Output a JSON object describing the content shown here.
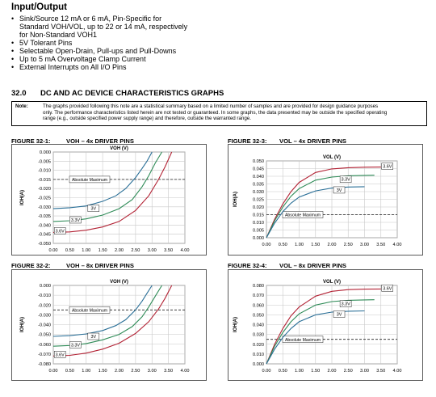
{
  "io_heading": "Input/Output",
  "bullets": [
    {
      "lines": [
        "Sink/Source 12 mA or 6 mA, Pin-Specific for",
        "Standard VOH/VOL, up to 22 or 14 mA, respectively",
        "for Non-Standard VOH1"
      ]
    },
    {
      "lines": [
        "5V Tolerant Pins"
      ]
    },
    {
      "lines": [
        "Selectable Open-Drain, Pull-ups and Pull-Downs"
      ]
    },
    {
      "lines": [
        "Up to 5 mA Overvoltage Clamp Current"
      ]
    },
    {
      "lines": [
        "External Interrupts on All I/O Pins"
      ]
    }
  ],
  "section": {
    "number": "32.0",
    "title": "DC AND AC DEVICE CHARACTERISTICS GRAPHS"
  },
  "note": {
    "label": "Note:",
    "lines": [
      "The graphs provided following this note are a statistical summary based on a limited number of samples and are provided for design guidance purposes",
      "only. The performance characteristics listed herein are not tested or guaranteed. In some graphs, the data presented may be outside the specified operating",
      "range (e.g., outside specified power supply range) and therefore, outside the warranted range."
    ]
  },
  "chart_data": [
    {
      "figure": "FIGURE 32-1:",
      "caption": "VOH – 4x DRIVER PINS",
      "type": "line",
      "title": "VOH (V)",
      "ylabel": "IOH(A)",
      "xlim": [
        0,
        4
      ],
      "ylim": [
        -0.05,
        0
      ],
      "x_ticks": [
        "0.00",
        "0.50",
        "1.00",
        "1.50",
        "2.00",
        "2.50",
        "3.00",
        "3.50",
        "4.00"
      ],
      "y_ticks": [
        "-0.050",
        "-0.045",
        "-0.040",
        "-0.035",
        "-0.030",
        "-0.025",
        "-0.020",
        "-0.015",
        "-0.010",
        "-0.005",
        "0.000"
      ],
      "reference": {
        "label": "Absolute Maximum",
        "y": -0.015
      },
      "series": [
        {
          "name": "3.6V",
          "color": "#b22234",
          "x": [
            0,
            0.5,
            1.0,
            1.5,
            2.0,
            2.5,
            2.9,
            3.2,
            3.4,
            3.6
          ],
          "y": [
            -0.044,
            -0.0437,
            -0.0428,
            -0.041,
            -0.038,
            -0.032,
            -0.024,
            -0.015,
            -0.008,
            0.0
          ]
        },
        {
          "name": "3.3V",
          "color": "#2e8b57",
          "x": [
            0,
            0.5,
            1.0,
            1.5,
            2.0,
            2.4,
            2.7,
            2.9,
            3.1,
            3.3
          ],
          "y": [
            -0.038,
            -0.0376,
            -0.0366,
            -0.0345,
            -0.031,
            -0.026,
            -0.019,
            -0.013,
            -0.006,
            0.0
          ]
        },
        {
          "name": "3V",
          "color": "#2a6f97",
          "x": [
            0,
            0.5,
            1.0,
            1.5,
            1.9,
            2.2,
            2.5,
            2.7,
            2.85,
            3.0
          ],
          "y": [
            -0.031,
            -0.0305,
            -0.0295,
            -0.027,
            -0.024,
            -0.02,
            -0.014,
            -0.009,
            -0.005,
            0.0
          ]
        }
      ]
    },
    {
      "figure": "FIGURE 32-3:",
      "caption": "VOL – 4x DRIVER PINS",
      "type": "line",
      "title": "VOL (V)",
      "ylabel": "IOH(A)",
      "xlim": [
        0,
        4
      ],
      "ylim": [
        0,
        0.05
      ],
      "x_ticks": [
        "0.00",
        "0.50",
        "1.00",
        "1.50",
        "2.00",
        "2.50",
        "3.00",
        "3.50",
        "4.00"
      ],
      "y_ticks": [
        "0.000",
        "0.005",
        "0.010",
        "0.015",
        "0.020",
        "0.025",
        "0.030",
        "0.035",
        "0.040",
        "0.045",
        "0.050"
      ],
      "reference": {
        "label": "Absolute Maximum",
        "y": 0.015
      },
      "series": [
        {
          "name": "3.6V",
          "color": "#b22234",
          "x": [
            0,
            0.25,
            0.5,
            0.75,
            1.0,
            1.5,
            2.0,
            2.5,
            3.0,
            3.5
          ],
          "y": [
            0.0,
            0.012,
            0.022,
            0.03,
            0.036,
            0.0425,
            0.0448,
            0.0456,
            0.0459,
            0.046
          ]
        },
        {
          "name": "3.3V",
          "color": "#2e8b57",
          "x": [
            0,
            0.25,
            0.5,
            0.75,
            1.0,
            1.5,
            2.0,
            2.5,
            3.0,
            3.3
          ],
          "y": [
            0.0,
            0.011,
            0.02,
            0.027,
            0.032,
            0.0375,
            0.0395,
            0.0403,
            0.0406,
            0.0407
          ]
        },
        {
          "name": "3V",
          "color": "#2a6f97",
          "x": [
            0,
            0.25,
            0.5,
            0.75,
            1.0,
            1.5,
            2.0,
            2.5,
            3.0
          ],
          "y": [
            0.0,
            0.0095,
            0.017,
            0.0225,
            0.0265,
            0.0305,
            0.0323,
            0.033,
            0.0332
          ]
        }
      ]
    },
    {
      "figure": "FIGURE 32-2:",
      "caption": "VOH – 8x DRIVER PINS",
      "type": "line",
      "title": "VOH (V)",
      "ylabel": "IOH(A)",
      "xlim": [
        0,
        4
      ],
      "ylim": [
        -0.08,
        0
      ],
      "x_ticks": [
        "0.00",
        "0.50",
        "1.00",
        "1.50",
        "2.00",
        "2.50",
        "3.00",
        "3.50",
        "4.00"
      ],
      "y_ticks": [
        "-0.080",
        "-0.070",
        "-0.060",
        "-0.050",
        "-0.040",
        "-0.030",
        "-0.020",
        "-0.010",
        "0.000"
      ],
      "reference": {
        "label": "Absolute Maximum",
        "y": -0.025
      },
      "series": [
        {
          "name": "3.6V",
          "color": "#b22234",
          "x": [
            0,
            0.5,
            1.0,
            1.5,
            2.0,
            2.5,
            2.9,
            3.2,
            3.4,
            3.6
          ],
          "y": [
            -0.072,
            -0.0713,
            -0.069,
            -0.065,
            -0.059,
            -0.049,
            -0.037,
            -0.024,
            -0.013,
            0.0
          ]
        },
        {
          "name": "3.3V",
          "color": "#2e8b57",
          "x": [
            0,
            0.5,
            1.0,
            1.5,
            2.0,
            2.4,
            2.7,
            2.9,
            3.1,
            3.3
          ],
          "y": [
            -0.062,
            -0.0613,
            -0.0593,
            -0.0555,
            -0.05,
            -0.042,
            -0.032,
            -0.022,
            -0.011,
            0.0
          ]
        },
        {
          "name": "3V",
          "color": "#2a6f97",
          "x": [
            0,
            0.5,
            1.0,
            1.5,
            1.9,
            2.2,
            2.5,
            2.7,
            2.85,
            3.0
          ],
          "y": [
            -0.052,
            -0.0512,
            -0.0495,
            -0.046,
            -0.041,
            -0.035,
            -0.025,
            -0.016,
            -0.008,
            0.0
          ]
        }
      ]
    },
    {
      "figure": "FIGURE 32-4:",
      "caption": "VOL – 8x DRIVER PINS",
      "type": "line",
      "title": "VOL (V)",
      "ylabel": "IOH(A)",
      "xlim": [
        0,
        4
      ],
      "ylim": [
        0,
        0.08
      ],
      "x_ticks": [
        "0.00",
        "0.50",
        "1.00",
        "1.50",
        "2.00",
        "2.50",
        "3.00",
        "3.50",
        "4.00"
      ],
      "y_ticks": [
        "0.000",
        "0.010",
        "0.020",
        "0.030",
        "0.040",
        "0.050",
        "0.060",
        "0.070",
        "0.080"
      ],
      "reference": {
        "label": "Absolute Maximum",
        "y": 0.025
      },
      "series": [
        {
          "name": "3.6V",
          "color": "#b22234",
          "x": [
            0,
            0.25,
            0.5,
            0.75,
            1.0,
            1.5,
            2.0,
            2.5,
            3.0,
            3.5
          ],
          "y": [
            0.0,
            0.02,
            0.036,
            0.049,
            0.058,
            0.069,
            0.074,
            0.0757,
            0.0762,
            0.0764
          ]
        },
        {
          "name": "3.3V",
          "color": "#2e8b57",
          "x": [
            0,
            0.25,
            0.5,
            0.75,
            1.0,
            1.5,
            2.0,
            2.5,
            3.0,
            3.3
          ],
          "y": [
            0.0,
            0.018,
            0.032,
            0.043,
            0.051,
            0.06,
            0.0635,
            0.0648,
            0.0652,
            0.0654
          ]
        },
        {
          "name": "3V",
          "color": "#2a6f97",
          "x": [
            0,
            0.25,
            0.5,
            0.75,
            1.0,
            1.5,
            2.0,
            2.5,
            3.0
          ],
          "y": [
            0.0,
            0.015,
            0.027,
            0.036,
            0.043,
            0.05,
            0.0528,
            0.0537,
            0.054
          ]
        }
      ]
    }
  ]
}
